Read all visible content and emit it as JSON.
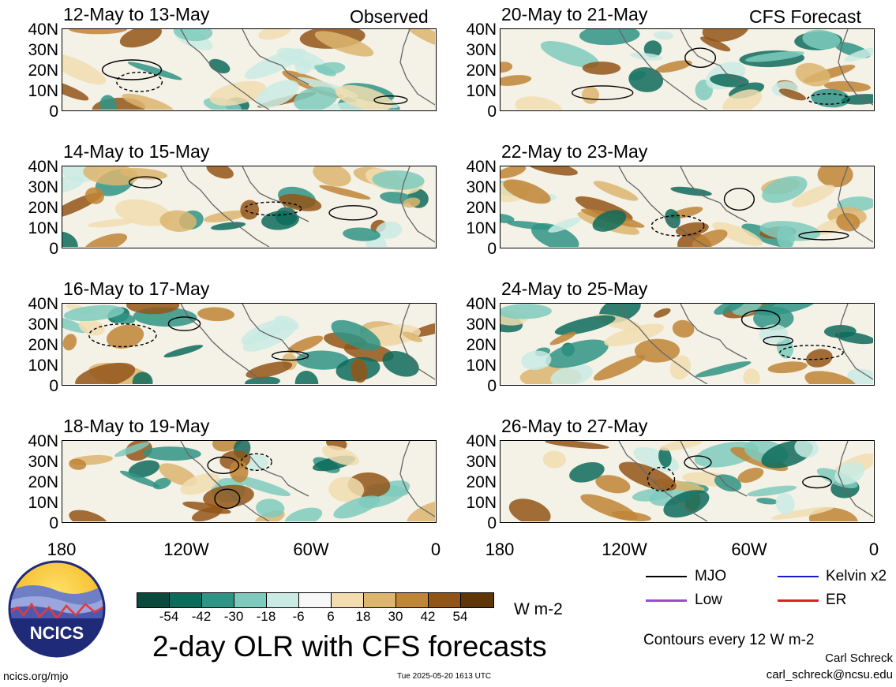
{
  "panel_titles": {
    "p1": "12-May to 13-May",
    "p2": "14-May to 15-May",
    "p3": "16-May to 17-May",
    "p4": "18-May to 19-May",
    "p5": "20-May to 21-May",
    "p6": "22-May to 23-May",
    "p7": "24-May to 25-May",
    "p8": "26-May to 27-May"
  },
  "tags": {
    "observed": "Observed",
    "forecast": "CFS Forecast"
  },
  "y_ticks": [
    "40N",
    "30N",
    "20N",
    "10N",
    "0"
  ],
  "x_ticks": [
    "180",
    "120W",
    "60W",
    "0"
  ],
  "colorbar": {
    "labels": [
      "-54",
      "-42",
      "-30",
      "-18",
      "-6",
      "6",
      "18",
      "30",
      "42",
      "54"
    ],
    "colors": [
      "#0a4a3c",
      "#0d6b5b",
      "#2f9485",
      "#7ecbbd",
      "#c9ebe3",
      "#f7f7f7",
      "#f1ddb0",
      "#dcb56e",
      "#c08536",
      "#935517",
      "#5f3608"
    ],
    "units": "W m-2"
  },
  "legend": {
    "mjo": "MJO",
    "kelvin": "Kelvin x2",
    "low": "Low",
    "er": "ER",
    "colors": {
      "mjo": "#000000",
      "kelvin": "#1a1acc",
      "low": "#9a4bd6",
      "er": "#e02020"
    }
  },
  "main_title": "2-day OLR with CFS forecasts",
  "contours_note": "Contours every 12 W m-2",
  "author": "Carl Schreck",
  "email": "carl_schreck@ncsu.edu",
  "site": "ncics.org/mjo",
  "timestamp": "Tue 2025-05-20 1613 UTC",
  "logo_text": "NCICS"
}
